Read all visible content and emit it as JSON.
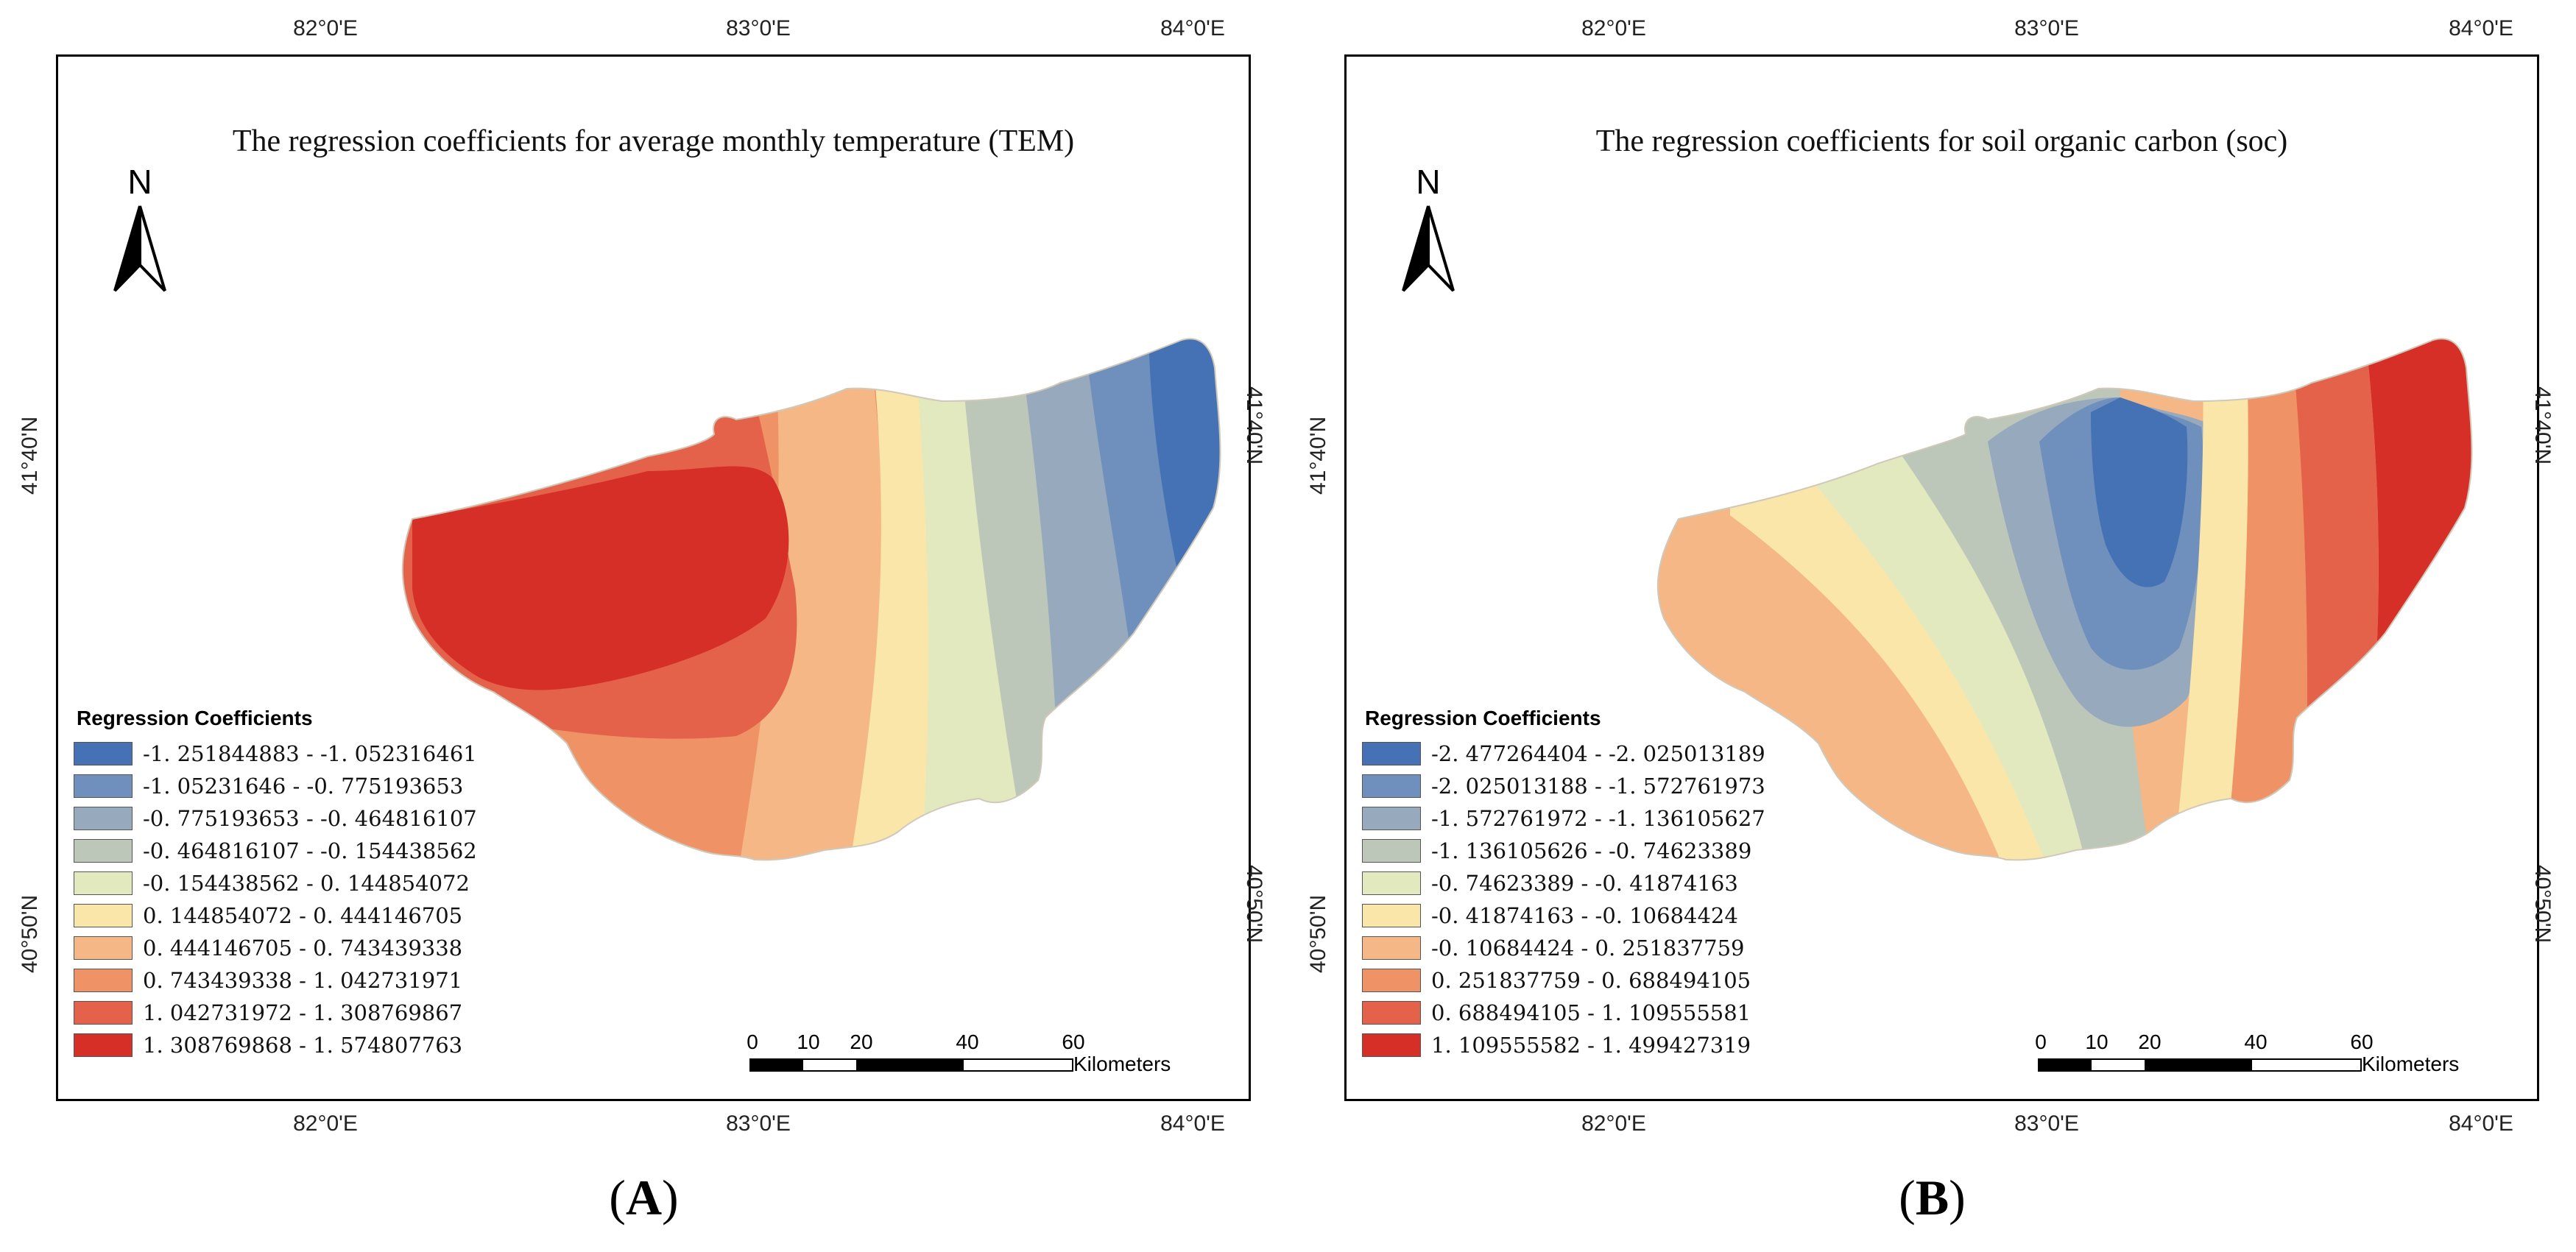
{
  "panels": [
    {
      "id": "A",
      "label_open": "(",
      "label_letter": "A",
      "label_close": ")",
      "title": "The regression coefficients for average monthly temperature (TEM)",
      "north": "N",
      "lon_top": [
        "82°0'E",
        "83°0'E",
        "84°0'E"
      ],
      "lon_bottom": [
        "82°0'E",
        "83°0'E",
        "84°0'E"
      ],
      "lat_left": [
        "41°40'N",
        "40°50'N"
      ],
      "lat_right": [
        "41°40'N",
        "40°50'N"
      ],
      "legend": {
        "title": "Regression Coefficients",
        "items": [
          {
            "label": "-1. 251844883 - -1. 052316461",
            "color": "#4472b4"
          },
          {
            "label": "-1. 05231646 - -0. 775193653",
            "color": "#6f8fbd"
          },
          {
            "label": "-0. 775193653 - -0. 464816107",
            "color": "#96a9bd"
          },
          {
            "label": "-0. 464816107 - -0. 154438562",
            "color": "#bcc7b9"
          },
          {
            "label": "-0. 154438562 - 0. 144854072",
            "color": "#e2e9bf"
          },
          {
            "label": "0. 144854072 - 0. 444146705",
            "color": "#fbe6a9"
          },
          {
            "label": "0. 444146705 - 0. 743439338",
            "color": "#f6b786"
          },
          {
            "label": "0. 743439338 - 1. 042731971",
            "color": "#ef9265"
          },
          {
            "label": "1. 042731972 - 1. 308769867",
            "color": "#e5624a"
          },
          {
            "label": "1. 308769868 - 1. 574807763",
            "color": "#d62f27"
          }
        ]
      },
      "scale": {
        "ticks": [
          "0",
          "10",
          "20",
          "40",
          "60"
        ],
        "units": "Kilometers"
      }
    },
    {
      "id": "B",
      "label_open": "(",
      "label_letter": "B",
      "label_close": ")",
      "title": "The regression coefficients for soil organic carbon (soc)",
      "north": "N",
      "lon_top": [
        "82°0'E",
        "83°0'E",
        "84°0'E"
      ],
      "lon_bottom": [
        "82°0'E",
        "83°0'E",
        "84°0'E"
      ],
      "lat_left": [
        "41°40'N",
        "40°50'N"
      ],
      "lat_right": [
        "41°40'N",
        "40°50'N"
      ],
      "legend": {
        "title": "Regression Coefficients",
        "items": [
          {
            "label": "-2. 477264404 - -2. 025013189",
            "color": "#4472b4"
          },
          {
            "label": "-2. 025013188 - -1. 572761973",
            "color": "#6f8fbd"
          },
          {
            "label": "-1. 572761972 - -1. 136105627",
            "color": "#96a9bd"
          },
          {
            "label": "-1. 136105626 - -0. 74623389",
            "color": "#bcc7b9"
          },
          {
            "label": "-0. 74623389 - -0. 41874163",
            "color": "#e2e9bf"
          },
          {
            "label": "-0. 41874163 - -0. 10684424",
            "color": "#fbe6a9"
          },
          {
            "label": "-0. 10684424 - 0. 251837759",
            "color": "#f6b786"
          },
          {
            "label": "0. 251837759 - 0. 688494105",
            "color": "#ef9265"
          },
          {
            "label": "0. 688494105 - 1. 109555581",
            "color": "#e5624a"
          },
          {
            "label": "1. 109555582 - 1. 499427319",
            "color": "#d62f27"
          }
        ]
      },
      "scale": {
        "ticks": [
          "0",
          "10",
          "20",
          "40",
          "60"
        ],
        "units": "Kilometers"
      }
    }
  ]
}
